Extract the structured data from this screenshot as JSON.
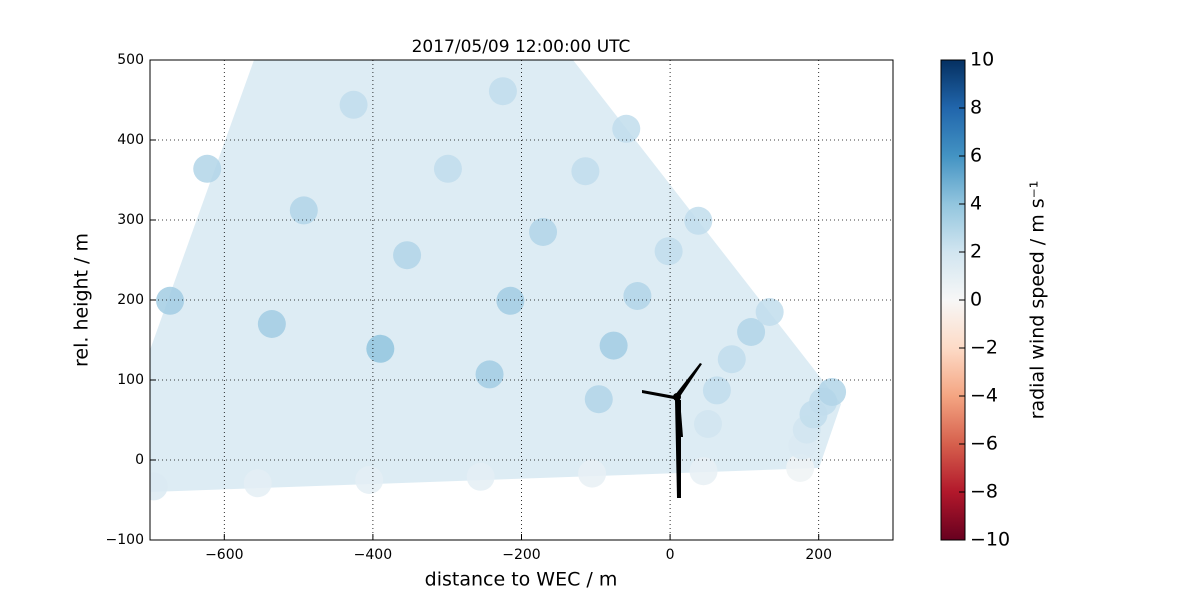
{
  "chart_data": {
    "type": "scatter",
    "title": "2017/05/09 12:00:00 UTC",
    "xlabel": "distance to WEC / m",
    "ylabel": "rel. height / m",
    "x": [
      175,
      178,
      184,
      193,
      206,
      218,
      45,
      51,
      63,
      83,
      109,
      134,
      -105,
      -96,
      -76,
      -44,
      -2,
      38,
      -255,
      -243,
      -215,
      -171,
      -114,
      -59,
      -405,
      -390,
      -354,
      -299,
      -225,
      -555,
      -536,
      -493,
      -426,
      -695,
      -673,
      -623
    ],
    "y": [
      -10,
      18,
      38,
      57,
      73,
      85,
      -14,
      45,
      87,
      126,
      160,
      185,
      -17,
      76,
      143,
      205,
      261,
      299,
      -21,
      107,
      199,
      285,
      361,
      414,
      -25,
      139,
      256,
      364,
      461,
      -29,
      170,
      312,
      444,
      -33,
      199,
      364
    ],
    "values": [
      0.5,
      1.5,
      2,
      2.5,
      2.5,
      3,
      0.8,
      2,
      2.5,
      2.5,
      3,
      2.5,
      0.8,
      3,
      3.5,
      3,
      2.5,
      2.5,
      1,
      3.5,
      3.5,
      3,
      2.5,
      2.5,
      1,
      4,
      3,
      2.5,
      2.5,
      1,
      3.5,
      3,
      2.5,
      1.5,
      3.5,
      3
    ],
    "xlim": [
      -700,
      300
    ],
    "xticks": [
      {
        "value": -600,
        "label": "−600"
      },
      {
        "value": -400,
        "label": "−400"
      },
      {
        "value": -200,
        "label": "−200"
      },
      0,
      200
    ],
    "ylim": [
      -100,
      500
    ],
    "yticks": [
      {
        "value": -100,
        "label": "−100"
      },
      0,
      100,
      200,
      300,
      400,
      500
    ],
    "grid": true,
    "colormap": "RdBu_r",
    "colorbar": {
      "label": "radial wind speed / m s⁻¹",
      "lim": [
        -10,
        10
      ],
      "ticks": [
        {
          "value": -10,
          "label": "−10"
        },
        {
          "value": -8,
          "label": "−8"
        },
        {
          "value": -6,
          "label": "−6"
        },
        {
          "value": -4,
          "label": "−4"
        },
        {
          "value": -2,
          "label": "−2"
        },
        0,
        2,
        4,
        6,
        8,
        10
      ]
    }
  }
}
